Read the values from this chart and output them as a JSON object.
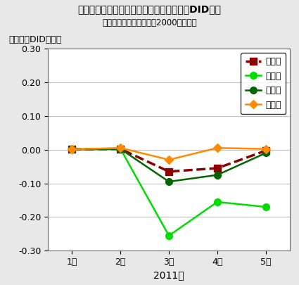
{
  "title": "東日本大震災前後の家計サービス消費支出DID変化",
  "subtitle": "（総務省家計調査月報・2000年実質）",
  "ylabel": "対例年比DID変化率",
  "xlabel": "2011年",
  "xtick_labels": [
    "1月",
    "2月",
    "3月",
    "4月",
    "5月"
  ],
  "x": [
    1,
    2,
    3,
    4,
    5
  ],
  "ylim": [
    -0.3,
    0.3
  ],
  "yticks": [
    -0.3,
    -0.2,
    -0.1,
    0.0,
    0.1,
    0.2,
    0.3
  ],
  "series": {
    "全　国": {
      "values": [
        0.001,
        0.002,
        -0.065,
        -0.055,
        -0.003
      ],
      "color": "#8B0000",
      "linestyle": "--",
      "marker": "s",
      "markersize": 7,
      "linewidth": 2.5
    },
    "東　北": {
      "values": [
        0.001,
        0.002,
        -0.255,
        -0.155,
        -0.17
      ],
      "color": "#00DD00",
      "linestyle": "-",
      "marker": "o",
      "markersize": 7,
      "linewidth": 1.8
    },
    "関　東": {
      "values": [
        0.001,
        0.002,
        -0.095,
        -0.075,
        -0.01
      ],
      "color": "#006600",
      "linestyle": "-",
      "marker": "o",
      "markersize": 7,
      "linewidth": 1.8
    },
    "他地域": {
      "values": [
        0.001,
        0.005,
        -0.03,
        0.005,
        0.002
      ],
      "color": "#FF8C00",
      "linestyle": "-",
      "marker": "D",
      "markersize": 6,
      "linewidth": 1.8
    }
  },
  "background_color": "#E8E8E8",
  "plot_bg_color": "#FFFFFF",
  "legend_order": [
    "全　国",
    "東　北",
    "関　東",
    "他地域"
  ],
  "title_fontsize": 10,
  "subtitle_fontsize": 8.5,
  "ylabel_fontsize": 9,
  "tick_fontsize": 9,
  "legend_fontsize": 9
}
